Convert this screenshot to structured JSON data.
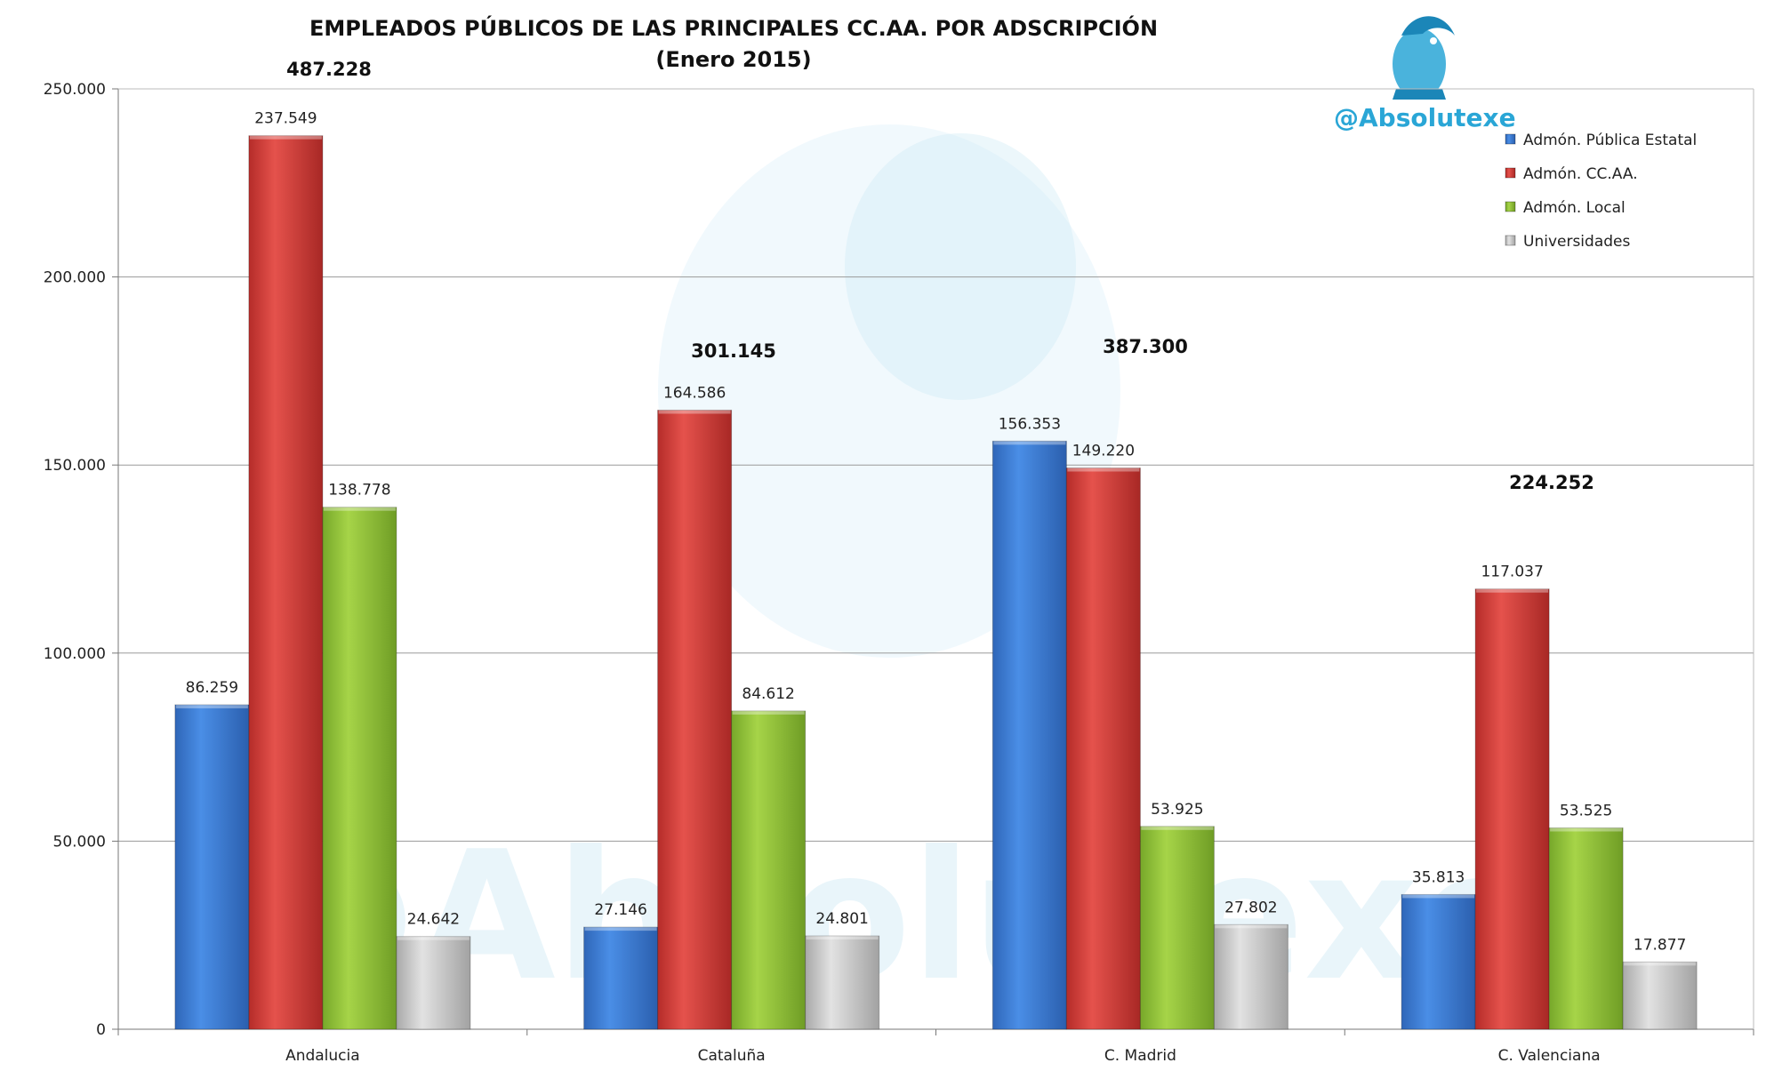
{
  "chart_data": {
    "type": "bar",
    "title": "EMPLEADOS PÚBLICOS DE LAS PRINCIPALES CC.AA. POR ADSCRIPCIÓN",
    "subtitle": "(Enero 2015)",
    "categories": [
      "Andalucia",
      "Cataluña",
      "C. Madrid",
      "C. Valenciana"
    ],
    "series": [
      {
        "name": "Admón. Pública Estatal",
        "color": "#3b7fd4",
        "values": [
          86259,
          27146,
          156353,
          35813
        ]
      },
      {
        "name": "Admón. CC.AA.",
        "color": "#d9413d",
        "values": [
          237549,
          164586,
          149220,
          117037
        ]
      },
      {
        "name": "Admón. Local",
        "color": "#93c43a",
        "values": [
          138778,
          84612,
          53925,
          53525
        ]
      },
      {
        "name": "Universidades",
        "color": "#c9c9c9",
        "values": [
          24642,
          24801,
          27802,
          17877
        ]
      }
    ],
    "value_labels": [
      [
        "86.259",
        "27.146",
        "156.353",
        "35.813"
      ],
      [
        "237.549",
        "164.586",
        "149.220",
        "117.037"
      ],
      [
        "138.778",
        "84.612",
        "53.925",
        "53.525"
      ],
      [
        "24.642",
        "24.801",
        "27.802",
        "17.877"
      ]
    ],
    "totals": [
      "487.228",
      "301.145",
      "387.300",
      "224.252"
    ],
    "ylim": [
      0,
      250000
    ],
    "yticks": [
      0,
      50000,
      100000,
      150000,
      200000,
      250000
    ],
    "ytick_labels": [
      "0",
      "50.000",
      "100.000",
      "150.000",
      "200.000",
      "250.000"
    ],
    "grid": true,
    "legend_position": "top-right",
    "xlabel": "",
    "ylabel": ""
  },
  "brand": {
    "handle": "@Absolutexe",
    "logo_icon": "griffin-logo-icon",
    "watermark_text": "@Absolutexe",
    "color": "#2aa6d6"
  }
}
